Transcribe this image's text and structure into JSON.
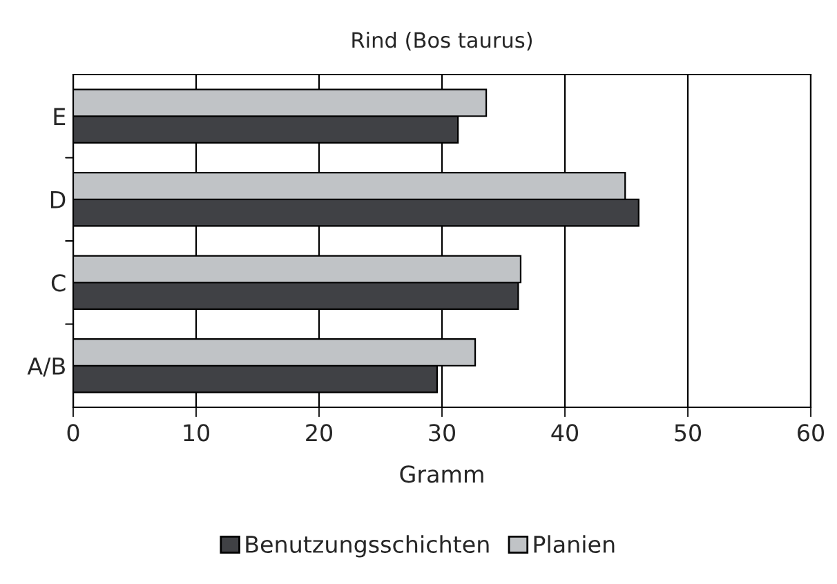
{
  "chart_data": {
    "type": "bar",
    "orientation": "horizontal",
    "title": "Rind (Bos taurus)",
    "xlabel": "Gramm",
    "categories": [
      "E",
      "D",
      "C",
      "A/B"
    ],
    "series": [
      {
        "name": "Benutzungsschichten",
        "color": "#404145",
        "values": [
          31.3,
          46.0,
          36.2,
          29.6
        ]
      },
      {
        "name": "Planien",
        "color": "#c0c3c6",
        "values": [
          33.6,
          44.9,
          36.4,
          32.7
        ]
      }
    ],
    "xlim": [
      0,
      60
    ],
    "xticks": [
      0,
      10,
      20,
      30,
      40,
      50,
      60
    ],
    "grid": "x",
    "legend": "bottom"
  }
}
